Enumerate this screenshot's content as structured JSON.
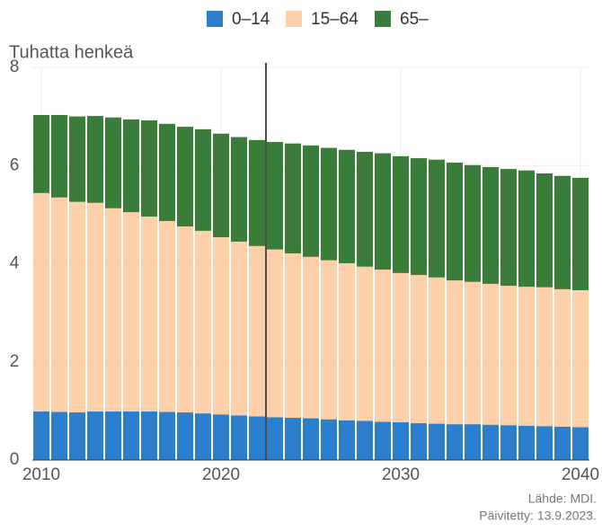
{
  "chart_data": {
    "type": "stacked_bar",
    "y_label": "Tuhatta henkeä",
    "x": [
      2010,
      2011,
      2012,
      2013,
      2014,
      2015,
      2016,
      2017,
      2018,
      2019,
      2020,
      2021,
      2022,
      2023,
      2024,
      2025,
      2026,
      2027,
      2028,
      2029,
      2030,
      2031,
      2032,
      2033,
      2034,
      2035,
      2036,
      2037,
      2038,
      2039,
      2040
    ],
    "series": [
      {
        "name": "0–14",
        "color": "#2b7fcc",
        "values": [
          0.99,
          0.98,
          0.97,
          0.99,
          0.99,
          0.99,
          0.99,
          0.98,
          0.97,
          0.95,
          0.93,
          0.91,
          0.89,
          0.87,
          0.86,
          0.85,
          0.83,
          0.81,
          0.8,
          0.78,
          0.77,
          0.75,
          0.74,
          0.73,
          0.73,
          0.72,
          0.71,
          0.7,
          0.69,
          0.68,
          0.67
        ]
      },
      {
        "name": "15–64",
        "color": "#fdd0a9",
        "values": [
          4.45,
          4.37,
          4.29,
          4.25,
          4.14,
          4.06,
          3.97,
          3.89,
          3.79,
          3.72,
          3.61,
          3.54,
          3.47,
          3.42,
          3.35,
          3.29,
          3.24,
          3.2,
          3.14,
          3.1,
          3.04,
          3.02,
          2.98,
          2.93,
          2.9,
          2.87,
          2.84,
          2.83,
          2.83,
          2.8,
          2.79
        ]
      },
      {
        "name": "65–",
        "color": "#3a7d3a",
        "values": [
          1.59,
          1.68,
          1.74,
          1.77,
          1.85,
          1.89,
          1.96,
          1.98,
          2.03,
          2.07,
          2.11,
          2.13,
          2.16,
          2.19,
          2.24,
          2.27,
          2.29,
          2.31,
          2.34,
          2.37,
          2.38,
          2.38,
          2.4,
          2.4,
          2.38,
          2.38,
          2.38,
          2.37,
          2.32,
          2.31,
          2.29
        ]
      }
    ],
    "xlim": [
      2009.5,
      2040.5
    ],
    "xticks": [
      2010,
      2020,
      2030,
      2040
    ],
    "ylim": [
      0,
      8
    ],
    "yticks": [
      0,
      2,
      4,
      6,
      8
    ],
    "grid": true,
    "vline": 2022.5,
    "source": "Lähde: MDI.",
    "updated": "Päivitetty: 13.9.2023."
  }
}
